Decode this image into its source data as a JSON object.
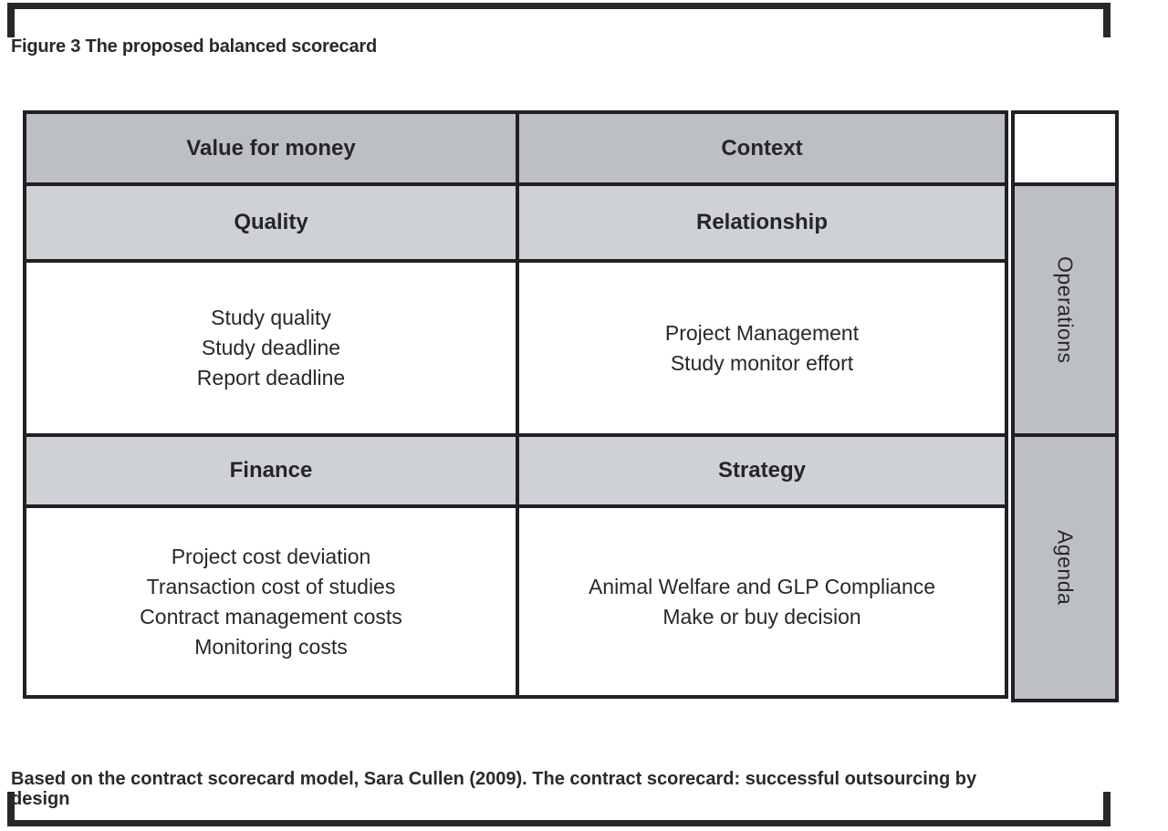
{
  "figure": {
    "title": "Figure 3 The proposed balanced scorecard",
    "caption_lines": [
      "Based on the contract scorecard model, Sara Cullen (2009). The contract scorecard: successful outsourcing by",
      "design"
    ]
  },
  "scorecard": {
    "columns": [
      {
        "header": "Value for money",
        "sections": [
          {
            "subheader": "Quality",
            "items": [
              "Study quality",
              "Study deadline",
              "Report deadline"
            ]
          },
          {
            "subheader": "Finance",
            "items": [
              "Project cost deviation",
              "Transaction cost of studies",
              "Contract management costs",
              "Monitoring costs"
            ]
          }
        ]
      },
      {
        "header": "Context",
        "sections": [
          {
            "subheader": "Relationship",
            "items": [
              "Project Management",
              "Study monitor effort"
            ]
          },
          {
            "subheader": "Strategy",
            "items": [
              "Animal Welfare and GLP Compliance",
              "Make or buy decision"
            ]
          }
        ]
      }
    ],
    "side_labels": {
      "top": "Operations",
      "bottom": "Agenda"
    }
  },
  "colors": {
    "header_gray": "#bcc0c4",
    "subheader_gray": "#ced2d5",
    "border_black": "#231f24",
    "text": "#2a262c"
  }
}
